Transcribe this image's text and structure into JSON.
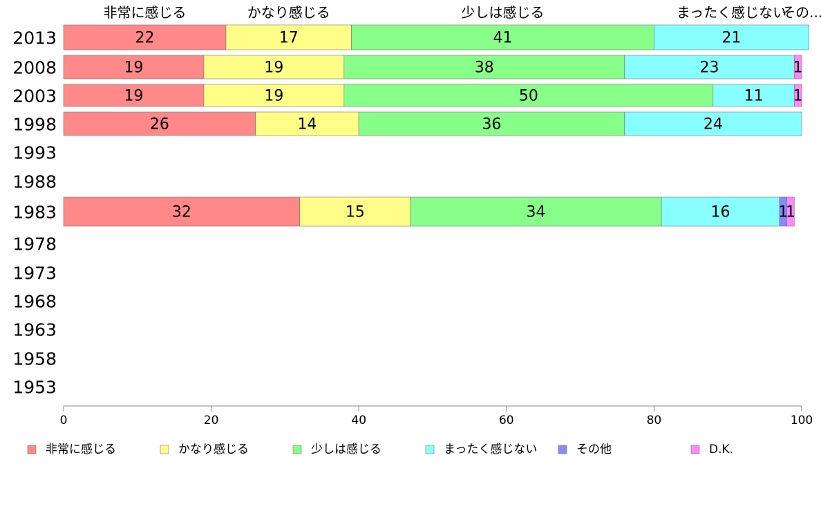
{
  "chart_data": {
    "type": "bar",
    "orientation": "horizontal",
    "stacked": true,
    "categories": [
      "2013",
      "2008",
      "2003",
      "1998",
      "1993",
      "1988",
      "1983",
      "1978",
      "1973",
      "1968",
      "1963",
      "1958",
      "1953"
    ],
    "series": [
      {
        "name": "非常に感じる",
        "color": "#ff8888",
        "values": [
          22,
          19,
          19,
          26,
          null,
          null,
          32,
          null,
          null,
          null,
          null,
          null,
          null
        ]
      },
      {
        "name": "かなり感じる",
        "color": "#ffff88",
        "values": [
          17,
          19,
          19,
          14,
          null,
          null,
          15,
          null,
          null,
          null,
          null,
          null,
          null
        ]
      },
      {
        "name": "少しは感じる",
        "color": "#88ff88",
        "values": [
          41,
          38,
          50,
          36,
          null,
          null,
          34,
          null,
          null,
          null,
          null,
          null,
          null
        ]
      },
      {
        "name": "まったく感じない",
        "color": "#88ffff",
        "values": [
          21,
          23,
          11,
          24,
          null,
          null,
          16,
          null,
          null,
          null,
          null,
          null,
          null
        ]
      },
      {
        "name": "その他",
        "color": "#8888ff",
        "values": [
          0,
          0,
          0,
          0,
          null,
          null,
          1,
          null,
          null,
          null,
          null,
          null,
          null
        ]
      },
      {
        "name": "D.K.",
        "color": "#ff88ff",
        "values": [
          0,
          1,
          1,
          0,
          null,
          null,
          1,
          null,
          null,
          null,
          null,
          null,
          null
        ]
      }
    ],
    "top_labels": [
      "非常に感じる",
      "かなり感じる",
      "少しは感じる",
      "まったく感じない",
      "その..."
    ],
    "xlim": [
      0,
      100
    ],
    "xticks": [
      0,
      20,
      40,
      60,
      80,
      100
    ],
    "grid": false,
    "legend_position": "bottom",
    "title": "",
    "xlabel": "",
    "ylabel": ""
  }
}
